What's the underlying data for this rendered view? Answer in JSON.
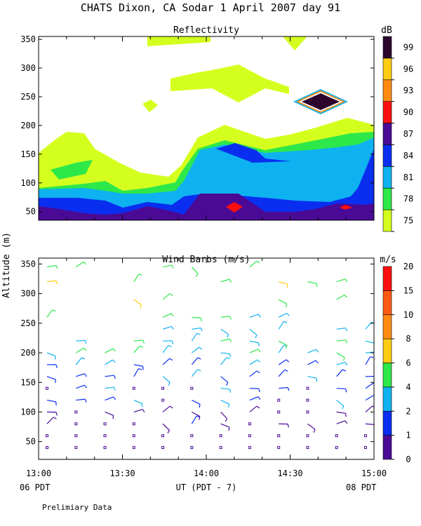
{
  "header": {
    "title": "CHATS Dixon, CA  Sodar   1 April 2007  day  91"
  },
  "footer": {
    "xlabel": "UT  (PDT - 7)",
    "start_local": "06 PDT",
    "end_local": "08 PDT",
    "note": "Prelimiary Data"
  },
  "ylabel": "Altitude (m)",
  "colors": {
    "dB": [
      "#d4ff1e",
      "#2ee84a",
      "#0fb2f0",
      "#0a2ef0",
      "#4a0a96",
      "#ff1010",
      "#ff8a14",
      "#ffcc14",
      "#2d062e"
    ],
    "wind": [
      "#4a0a96",
      "#0a2ef0",
      "#0fb2f0",
      "#2ee84a",
      "#ffcc14",
      "#ff8a14",
      "#ff5a14",
      "#ff1010"
    ]
  },
  "chart_data": [
    {
      "type": "heatmap",
      "title": "Reflectivity",
      "unit_label": "dB",
      "x_ticks": [
        "13:00",
        "13:30",
        "14:00",
        "14:30",
        "15:00"
      ],
      "xlim": [
        "13:00",
        "15:00"
      ],
      "y_ticks": [
        50,
        100,
        150,
        200,
        250,
        300,
        350
      ],
      "ylim": [
        35,
        355
      ],
      "colorbar_ticks": [
        75,
        78,
        81,
        84,
        87,
        90,
        93,
        96,
        99
      ],
      "grid": false
    },
    {
      "type": "scatter",
      "title": "Wind Barbs (m/s)",
      "unit_label": "m/s",
      "x_ticks": [
        "13:00",
        "13:30",
        "14:00",
        "14:30",
        "15:00"
      ],
      "xlim": [
        "13:00",
        "15:00"
      ],
      "y_ticks": [
        50,
        100,
        150,
        200,
        250,
        300,
        350
      ],
      "ylim": [
        20,
        360
      ],
      "colorbar_ticks": [
        0,
        1,
        2,
        4,
        6,
        8,
        10,
        15,
        20
      ],
      "grid": false
    }
  ]
}
